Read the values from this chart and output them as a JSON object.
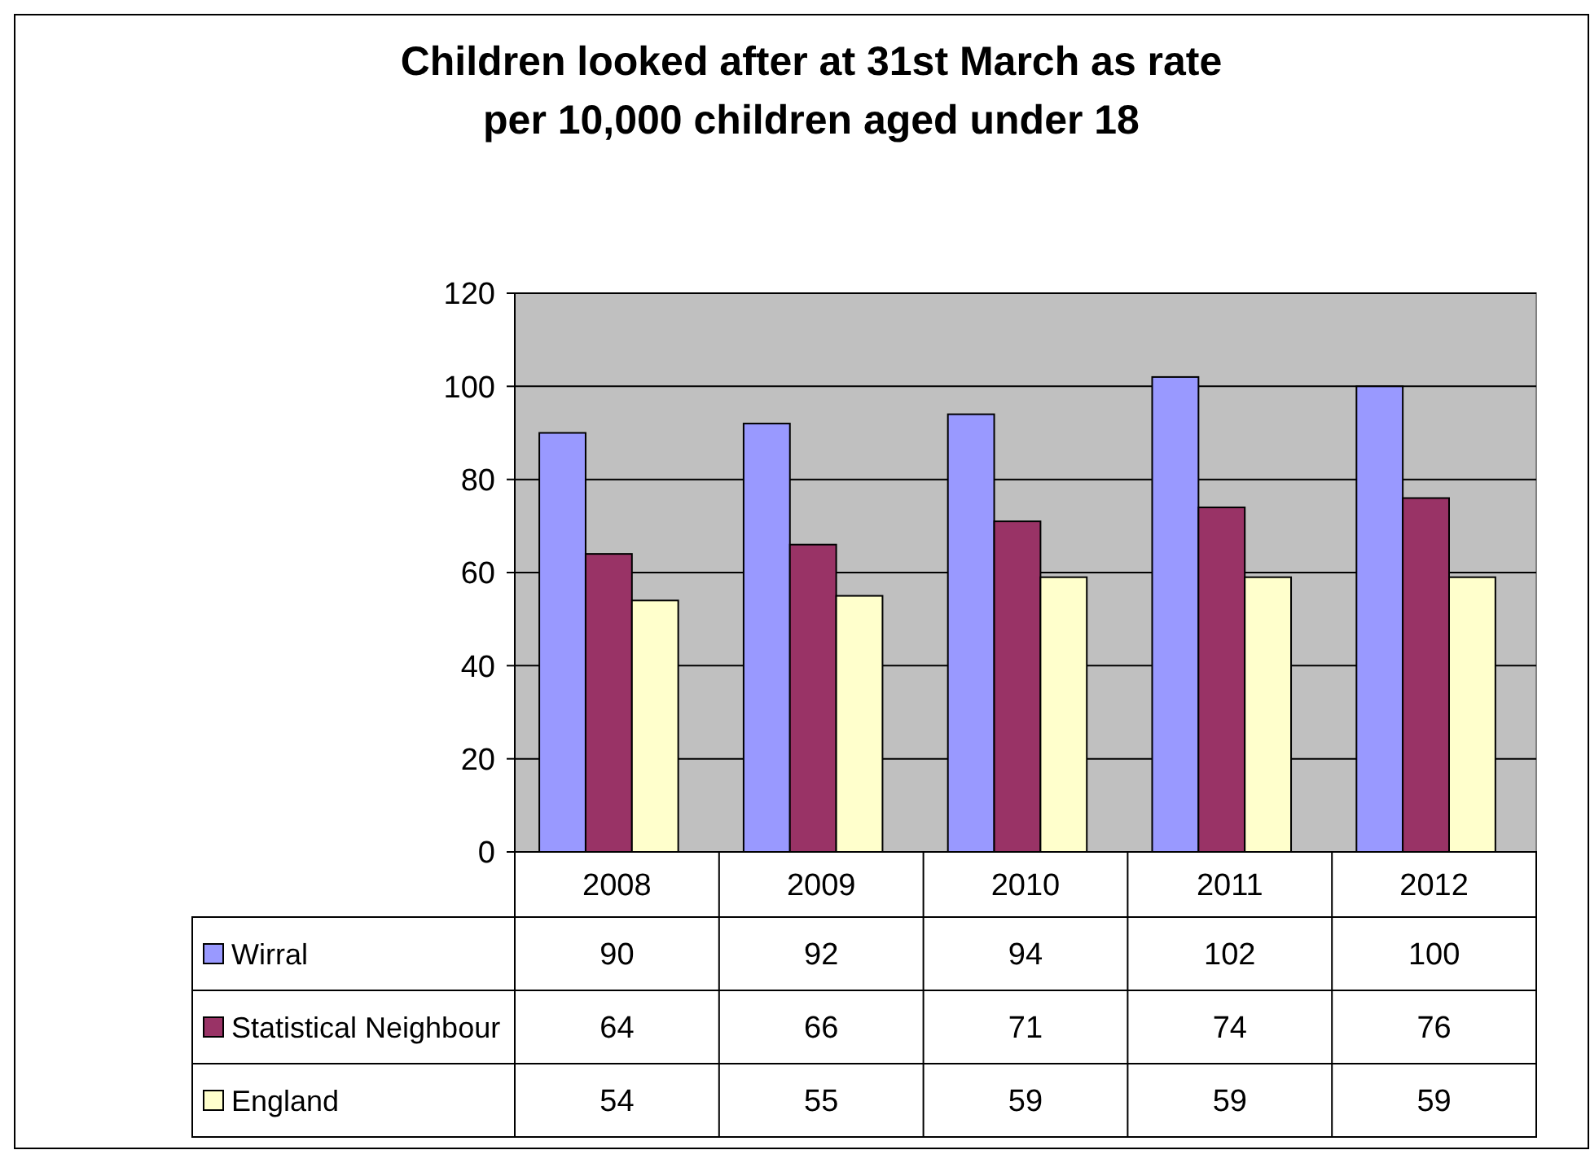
{
  "chart_data": {
    "type": "bar",
    "title": "Children looked after at 31st March as rate\nper 10,000 children aged under 18",
    "categories": [
      "2008",
      "2009",
      "2010",
      "2011",
      "2012"
    ],
    "series": [
      {
        "name": "Wirral",
        "color": "#9999ff",
        "values": [
          90,
          92,
          94,
          102,
          100
        ]
      },
      {
        "name": "Statistical Neighbour",
        "color": "#993366",
        "values": [
          64,
          66,
          71,
          74,
          76
        ]
      },
      {
        "name": "England",
        "color": "#ffffcc",
        "values": [
          54,
          55,
          59,
          59,
          59
        ]
      }
    ],
    "ylim": [
      0,
      120
    ],
    "yticks": [
      0,
      20,
      40,
      60,
      80,
      100,
      120
    ],
    "grid": "y",
    "data_labels": true,
    "legend": "bottom"
  }
}
